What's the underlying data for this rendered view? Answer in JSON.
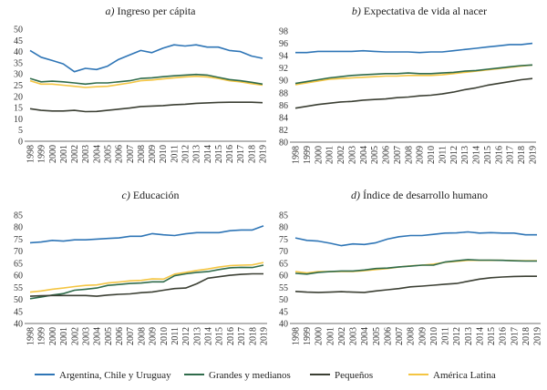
{
  "chart_data": [
    {
      "type": "line",
      "title_prefix": "a)",
      "title": "Ingreso per cápita",
      "ylim": [
        0,
        50
      ],
      "yticks": [
        0,
        5,
        10,
        15,
        20,
        25,
        30,
        35,
        40,
        45,
        50
      ],
      "x": [
        1998,
        1999,
        2000,
        2001,
        2002,
        2003,
        2004,
        2005,
        2006,
        2007,
        2008,
        2009,
        2010,
        2011,
        2012,
        2013,
        2014,
        2015,
        2016,
        2017,
        2018,
        2019
      ],
      "series": [
        {
          "name": "Argentina, Chile y Uruguay",
          "values": [
            40.5,
            37.5,
            36,
            34.5,
            31,
            32.5,
            32,
            33.5,
            36.5,
            38.5,
            40.5,
            39.5,
            41.5,
            43,
            42.5,
            43,
            42,
            42,
            40.5,
            40,
            38,
            37
          ]
        },
        {
          "name": "Grandes y medianos",
          "values": [
            28,
            26.5,
            26.8,
            26.5,
            26,
            25.5,
            26,
            26,
            26.5,
            27,
            28,
            28.3,
            28.8,
            29.2,
            29.5,
            29.8,
            29.5,
            28.5,
            27.5,
            27,
            26.3,
            25.5
          ]
        },
        {
          "name": "Pequeños",
          "values": [
            14.5,
            13.8,
            13.5,
            13.5,
            13.8,
            13.2,
            13.3,
            13.8,
            14.3,
            14.8,
            15.5,
            15.7,
            15.9,
            16.3,
            16.5,
            16.9,
            17.1,
            17.3,
            17.4,
            17.4,
            17.4,
            17.2
          ]
        },
        {
          "name": "América Latina",
          "values": [
            27,
            25.5,
            25.5,
            25,
            24.5,
            24,
            24.3,
            24.5,
            25.3,
            26,
            27,
            27.3,
            27.8,
            28.3,
            28.7,
            29,
            28.7,
            28,
            27,
            26.5,
            25.7,
            25
          ]
        }
      ]
    },
    {
      "type": "line",
      "title_prefix": "b)",
      "title": "Expectativa de vida al nacer",
      "ylim": [
        80,
        98
      ],
      "yticks": [
        80,
        82,
        84,
        86,
        88,
        90,
        92,
        94,
        96,
        98
      ],
      "x": [
        1998,
        1999,
        2000,
        2001,
        2002,
        2003,
        2004,
        2005,
        2006,
        2007,
        2008,
        2009,
        2010,
        2011,
        2012,
        2013,
        2014,
        2015,
        2016,
        2017,
        2018,
        2019
      ],
      "series": [
        {
          "name": "Argentina, Chile y Uruguay",
          "values": [
            94.5,
            94.5,
            94.7,
            94.7,
            94.7,
            94.7,
            94.8,
            94.7,
            94.6,
            94.6,
            94.6,
            94.5,
            94.6,
            94.6,
            94.8,
            95,
            95.2,
            95.4,
            95.6,
            95.8,
            95.8,
            96
          ]
        },
        {
          "name": "Grandes y medianos",
          "values": [
            89.5,
            89.8,
            90.1,
            90.4,
            90.6,
            90.8,
            90.9,
            91,
            91.1,
            91.1,
            91.2,
            91.1,
            91.1,
            91.2,
            91.3,
            91.5,
            91.6,
            91.8,
            92,
            92.2,
            92.4,
            92.5
          ]
        },
        {
          "name": "Pequeños",
          "values": [
            85.5,
            85.8,
            86.1,
            86.3,
            86.5,
            86.6,
            86.8,
            86.9,
            87,
            87.2,
            87.3,
            87.5,
            87.6,
            87.8,
            88.1,
            88.5,
            88.8,
            89.2,
            89.5,
            89.8,
            90.1,
            90.3
          ]
        },
        {
          "name": "América Latina",
          "values": [
            89.3,
            89.6,
            89.9,
            90.2,
            90.3,
            90.4,
            90.5,
            90.6,
            90.7,
            90.7,
            90.8,
            90.8,
            90.8,
            90.9,
            91.1,
            91.3,
            91.5,
            91.7,
            91.9,
            92.1,
            92.3,
            92.5
          ]
        }
      ]
    },
    {
      "type": "line",
      "title_prefix": "c)",
      "title": "Educación",
      "ylim": [
        40,
        85
      ],
      "yticks": [
        40,
        45,
        50,
        55,
        60,
        65,
        70,
        75,
        80,
        85
      ],
      "x": [
        1998,
        1999,
        2000,
        2001,
        2002,
        2003,
        2004,
        2005,
        2006,
        2007,
        2008,
        2009,
        2010,
        2011,
        2012,
        2013,
        2014,
        2015,
        2016,
        2017,
        2018,
        2019
      ],
      "series": [
        {
          "name": "Argentina, Chile y Uruguay",
          "values": [
            73.5,
            73.8,
            74.5,
            74.2,
            74.7,
            74.7,
            75,
            75.3,
            75.5,
            76.2,
            76.2,
            77.3,
            76.8,
            76.5,
            77.2,
            77.7,
            77.7,
            77.7,
            78.5,
            78.8,
            78.8,
            80.5
          ]
        },
        {
          "name": "Grandes y medianos",
          "values": [
            50.3,
            51,
            51.8,
            52.4,
            53.8,
            54.2,
            54.7,
            55.8,
            56.2,
            56.6,
            56.8,
            57.3,
            57.3,
            59.8,
            60.6,
            61.2,
            61.5,
            62.4,
            63.1,
            63.3,
            63.2,
            64.2
          ]
        },
        {
          "name": "Pequeños",
          "values": [
            51.3,
            51.5,
            51.6,
            51.6,
            51.6,
            51.6,
            51.3,
            51.8,
            52.1,
            52.3,
            52.8,
            53.1,
            53.8,
            54.5,
            54.7,
            56.5,
            58.8,
            59.4,
            60,
            60.4,
            60.6,
            60.6
          ]
        },
        {
          "name": "América Latina",
          "values": [
            53,
            53.5,
            54.2,
            54.7,
            55.3,
            55.8,
            56,
            56.8,
            57.2,
            57.7,
            57.9,
            58.5,
            58.4,
            60.5,
            61.2,
            62,
            62.6,
            63.4,
            64,
            64.2,
            64.3,
            65.3
          ]
        }
      ]
    },
    {
      "type": "line",
      "title_prefix": "d)",
      "title": "Índice de desarrollo humano",
      "ylim": [
        40,
        85
      ],
      "yticks": [
        40,
        45,
        50,
        55,
        60,
        65,
        70,
        75,
        80,
        85
      ],
      "x": [
        1998,
        1999,
        2000,
        2001,
        2002,
        2003,
        2004,
        2005,
        2006,
        2007,
        2008,
        2009,
        2010,
        2011,
        2012,
        2013,
        2014,
        2015,
        2016,
        2017,
        2018,
        2019
      ],
      "series": [
        {
          "name": "Argentina, Chile y Uruguay",
          "values": [
            75.5,
            74.5,
            74.2,
            73.3,
            72.3,
            73,
            72.8,
            73.5,
            75,
            76,
            76.5,
            76.5,
            77,
            77.5,
            77.6,
            78,
            77.5,
            77.7,
            77.5,
            77.5,
            76.8,
            76.8
          ]
        },
        {
          "name": "Grandes y medianos",
          "values": [
            60.8,
            60.5,
            61.2,
            61.5,
            61.8,
            61.8,
            62.2,
            62.8,
            63,
            63.5,
            63.8,
            64.2,
            64.2,
            65.5,
            66,
            66.5,
            66.3,
            66.3,
            66.2,
            66,
            65.9,
            65.9
          ]
        },
        {
          "name": "Pequeños",
          "values": [
            53.3,
            53,
            52.9,
            53,
            53.2,
            53,
            52.9,
            53.5,
            54,
            54.5,
            55.2,
            55.5,
            55.9,
            56.3,
            56.6,
            57.5,
            58.4,
            59,
            59.3,
            59.5,
            59.6,
            59.6
          ]
        },
        {
          "name": "América Latina",
          "values": [
            61.5,
            61,
            61.5,
            61.5,
            61.6,
            61.6,
            61.9,
            62.4,
            62.8,
            63.4,
            63.9,
            64.2,
            64.6,
            65.4,
            65.8,
            66.2,
            66.2,
            66.2,
            66.2,
            66.1,
            66,
            66
          ]
        }
      ]
    }
  ],
  "legend": {
    "placement": "bottom",
    "items": [
      {
        "label": "Argentina, Chile y Uruguay",
        "color": "#2e75b6"
      },
      {
        "label": "Grandes y medianos",
        "color": "#2f6b4b"
      },
      {
        "label": "Pequeños",
        "color": "#3b3f33"
      },
      {
        "label": "América Latina",
        "color": "#f4c542"
      }
    ]
  },
  "grid": false
}
